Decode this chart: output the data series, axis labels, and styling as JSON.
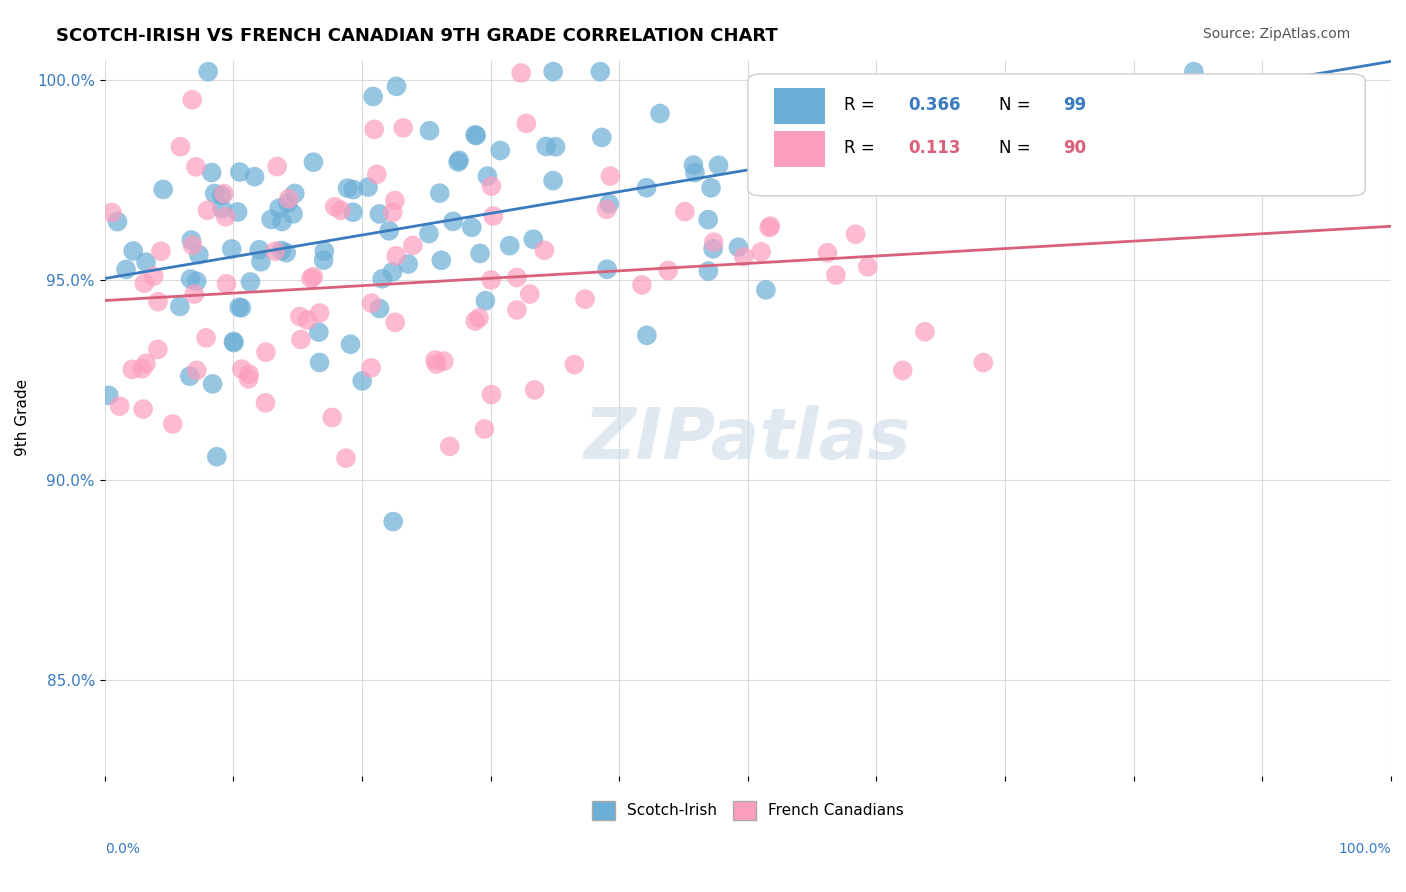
{
  "title": "SCOTCH-IRISH VS FRENCH CANADIAN 9TH GRADE CORRELATION CHART",
  "source": "Source: ZipAtlas.com",
  "ylabel": "9th Grade",
  "x_range": [
    0.0,
    1.0
  ],
  "y_range": [
    0.826,
    1.005
  ],
  "blue_color": "#6baed6",
  "pink_color": "#fc9ebf",
  "blue_line_color": "#3a7abf",
  "pink_line_color": "#d9607a",
  "r_blue": 0.366,
  "n_blue": 99,
  "r_pink": 0.113,
  "n_pink": 90,
  "legend_label_blue": "Scotch-Irish",
  "legend_label_pink": "French Canadians",
  "watermark_text": "ZIPatlas",
  "background_color": "#ffffff",
  "grid_color": "#cccccc"
}
